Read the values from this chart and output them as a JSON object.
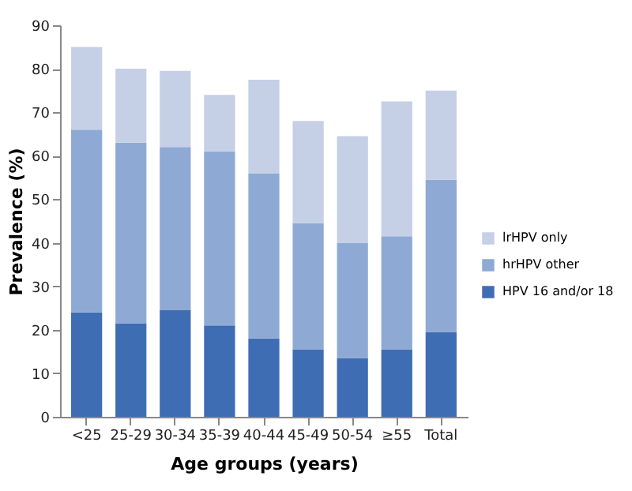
{
  "chart_data": {
    "type": "bar",
    "stacked": true,
    "xlabel": "Age groups (years)",
    "ylabel": "Prevalence (%)",
    "categories": [
      "<25",
      "25-29",
      "30-34",
      "35-39",
      "40-44",
      "45-49",
      "50-54",
      "≥55",
      "Total"
    ],
    "series": [
      {
        "name": "HPV 16 and/or 18",
        "color": "#3f6db3",
        "values": [
          24,
          21.5,
          24.5,
          21,
          18,
          15.5,
          13.5,
          15.5,
          19.5
        ]
      },
      {
        "name": "hrHPV other",
        "color": "#8eaad4",
        "values": [
          42,
          41.5,
          37.5,
          40,
          38,
          29,
          26.5,
          26,
          35
        ]
      },
      {
        "name": "lrHPV only",
        "color": "#c5d0e6",
        "values": [
          19,
          17,
          17.5,
          13,
          21.5,
          23.5,
          24.5,
          31,
          20.5
        ]
      }
    ],
    "ylim": [
      0,
      90
    ],
    "yticks": [
      0,
      10,
      20,
      30,
      40,
      50,
      60,
      70,
      80,
      90
    ],
    "grid": false,
    "legend": "right"
  }
}
